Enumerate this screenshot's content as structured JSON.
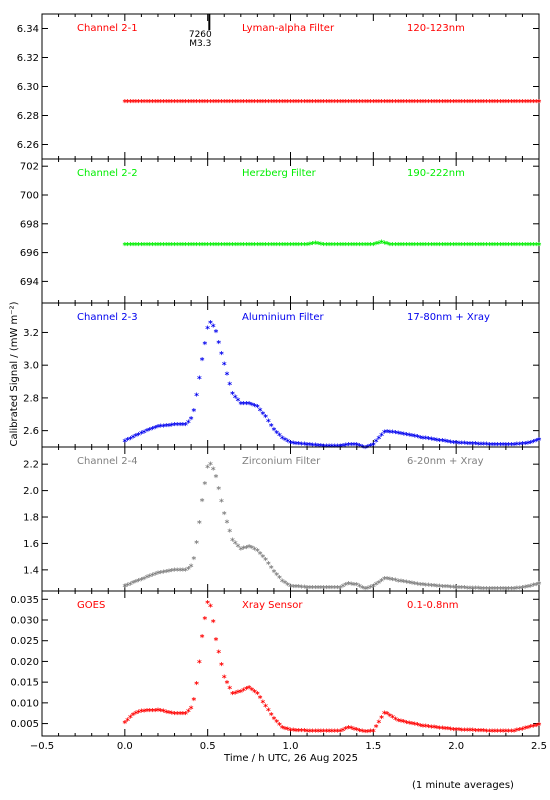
{
  "chart_data": {
    "type": "scatter",
    "xlabel": "Time / h UTC, 26 Aug 2025",
    "ylabel": "Calibrated Signal / (mW m⁻²)",
    "xlim": [
      -0.5,
      2.5
    ],
    "xticks": [
      -0.5,
      0.0,
      0.5,
      1.0,
      1.5,
      2.0,
      2.5
    ],
    "xtick_labels": [
      "−0.5",
      "0.0",
      "0.5",
      "1.0",
      "1.5",
      "2.0",
      "2.5"
    ],
    "footnote": "(1 minute averages)",
    "flare_marker": {
      "x": 0.51,
      "label_top": "7260",
      "label_bottom": "M3.3"
    },
    "panels": [
      {
        "name": "Channel 2-1",
        "filter": "Lyman-alpha Filter",
        "band": "120-123nm",
        "color": "#ff0000",
        "ylim": [
          6.25,
          6.35
        ],
        "yticks": [
          6.26,
          6.28,
          6.3,
          6.32,
          6.34
        ],
        "ytick_labels": [
          "6.26",
          "6.28",
          "6.30",
          "6.32",
          "6.34"
        ],
        "points": [
          [
            0.0,
            6.289
          ],
          [
            2.5,
            6.289
          ]
        ]
      },
      {
        "name": "Channel 2-2",
        "filter": "Herzberg Filter",
        "band": "190-222nm",
        "color": "#00ee00",
        "ylim": [
          692.5,
          702.5
        ],
        "yticks": [
          694,
          696,
          698,
          700,
          702
        ],
        "ytick_labels": [
          "694",
          "696",
          "698",
          "700",
          "702"
        ],
        "points": [
          [
            0.0,
            696.5
          ],
          [
            1.1,
            696.5
          ],
          [
            1.15,
            696.6
          ],
          [
            1.2,
            696.5
          ],
          [
            1.5,
            696.5
          ],
          [
            1.55,
            696.65
          ],
          [
            1.6,
            696.5
          ],
          [
            2.5,
            696.5
          ]
        ]
      },
      {
        "name": "Channel 2-3",
        "filter": "Aluminium Filter",
        "band": "17-80nm + Xray",
        "color": "#0000ee",
        "ylim": [
          2.5,
          3.38
        ],
        "yticks": [
          2.6,
          2.8,
          3.0,
          3.2
        ],
        "ytick_labels": [
          "2.6",
          "2.8",
          "3.0",
          "3.2"
        ],
        "points": [
          [
            0.0,
            2.53
          ],
          [
            0.1,
            2.58
          ],
          [
            0.2,
            2.62
          ],
          [
            0.3,
            2.63
          ],
          [
            0.37,
            2.63
          ],
          [
            0.41,
            2.68
          ],
          [
            0.44,
            2.85
          ],
          [
            0.47,
            3.05
          ],
          [
            0.5,
            3.22
          ],
          [
            0.52,
            3.26
          ],
          [
            0.55,
            3.2
          ],
          [
            0.6,
            3.0
          ],
          [
            0.65,
            2.82
          ],
          [
            0.7,
            2.76
          ],
          [
            0.75,
            2.76
          ],
          [
            0.8,
            2.74
          ],
          [
            0.85,
            2.68
          ],
          [
            0.9,
            2.6
          ],
          [
            0.95,
            2.55
          ],
          [
            1.0,
            2.52
          ],
          [
            1.1,
            2.51
          ],
          [
            1.2,
            2.5
          ],
          [
            1.3,
            2.5
          ],
          [
            1.35,
            2.51
          ],
          [
            1.4,
            2.51
          ],
          [
            1.45,
            2.49
          ],
          [
            1.5,
            2.51
          ],
          [
            1.57,
            2.59
          ],
          [
            1.65,
            2.58
          ],
          [
            1.8,
            2.55
          ],
          [
            2.0,
            2.52
          ],
          [
            2.2,
            2.51
          ],
          [
            2.35,
            2.51
          ],
          [
            2.45,
            2.52
          ],
          [
            2.5,
            2.54
          ]
        ]
      },
      {
        "name": "Channel 2-4",
        "filter": "Zirconium Filter",
        "band": "6-20nm + Xray",
        "color": "#808080",
        "ylim": [
          1.24,
          2.33
        ],
        "yticks": [
          1.4,
          1.6,
          1.8,
          2.0,
          2.2
        ],
        "ytick_labels": [
          "1.4",
          "1.6",
          "1.8",
          "2.0",
          "2.2"
        ],
        "points": [
          [
            0.0,
            1.27
          ],
          [
            0.1,
            1.32
          ],
          [
            0.2,
            1.37
          ],
          [
            0.3,
            1.39
          ],
          [
            0.37,
            1.39
          ],
          [
            0.41,
            1.43
          ],
          [
            0.44,
            1.65
          ],
          [
            0.47,
            1.95
          ],
          [
            0.5,
            2.17
          ],
          [
            0.52,
            2.2
          ],
          [
            0.55,
            2.1
          ],
          [
            0.6,
            1.82
          ],
          [
            0.65,
            1.62
          ],
          [
            0.7,
            1.55
          ],
          [
            0.75,
            1.57
          ],
          [
            0.8,
            1.54
          ],
          [
            0.85,
            1.47
          ],
          [
            0.9,
            1.38
          ],
          [
            0.95,
            1.31
          ],
          [
            1.0,
            1.27
          ],
          [
            1.1,
            1.26
          ],
          [
            1.2,
            1.26
          ],
          [
            1.3,
            1.26
          ],
          [
            1.35,
            1.29
          ],
          [
            1.4,
            1.28
          ],
          [
            1.45,
            1.25
          ],
          [
            1.5,
            1.27
          ],
          [
            1.57,
            1.33
          ],
          [
            1.65,
            1.31
          ],
          [
            1.8,
            1.28
          ],
          [
            2.0,
            1.26
          ],
          [
            2.2,
            1.25
          ],
          [
            2.35,
            1.25
          ],
          [
            2.45,
            1.27
          ],
          [
            2.5,
            1.29
          ]
        ]
      },
      {
        "name": "GOES",
        "filter": "Xray Sensor",
        "band": "0.1-0.8nm",
        "color": "#ff0000",
        "ylim": [
          0.002,
          0.037
        ],
        "yticks": [
          0.005,
          0.01,
          0.015,
          0.02,
          0.025,
          0.03,
          0.035
        ],
        "ytick_labels": [
          "0.005",
          "0.010",
          "0.015",
          "0.020",
          "0.025",
          "0.030",
          "0.035"
        ],
        "points": [
          [
            0.0,
            0.005
          ],
          [
            0.05,
            0.007
          ],
          [
            0.1,
            0.0078
          ],
          [
            0.2,
            0.008
          ],
          [
            0.3,
            0.0072
          ],
          [
            0.37,
            0.0072
          ],
          [
            0.41,
            0.009
          ],
          [
            0.44,
            0.016
          ],
          [
            0.47,
            0.027
          ],
          [
            0.5,
            0.034
          ],
          [
            0.52,
            0.033
          ],
          [
            0.55,
            0.025
          ],
          [
            0.6,
            0.016
          ],
          [
            0.65,
            0.012
          ],
          [
            0.7,
            0.0125
          ],
          [
            0.75,
            0.0135
          ],
          [
            0.8,
            0.012
          ],
          [
            0.85,
            0.009
          ],
          [
            0.9,
            0.006
          ],
          [
            0.95,
            0.0038
          ],
          [
            1.0,
            0.0032
          ],
          [
            1.1,
            0.003
          ],
          [
            1.2,
            0.003
          ],
          [
            1.3,
            0.003
          ],
          [
            1.35,
            0.0038
          ],
          [
            1.4,
            0.0033
          ],
          [
            1.45,
            0.0028
          ],
          [
            1.5,
            0.003
          ],
          [
            1.57,
            0.0075
          ],
          [
            1.65,
            0.0055
          ],
          [
            1.8,
            0.0042
          ],
          [
            2.0,
            0.0033
          ],
          [
            2.2,
            0.003
          ],
          [
            2.35,
            0.003
          ],
          [
            2.45,
            0.004
          ],
          [
            2.5,
            0.0045
          ]
        ]
      }
    ]
  }
}
